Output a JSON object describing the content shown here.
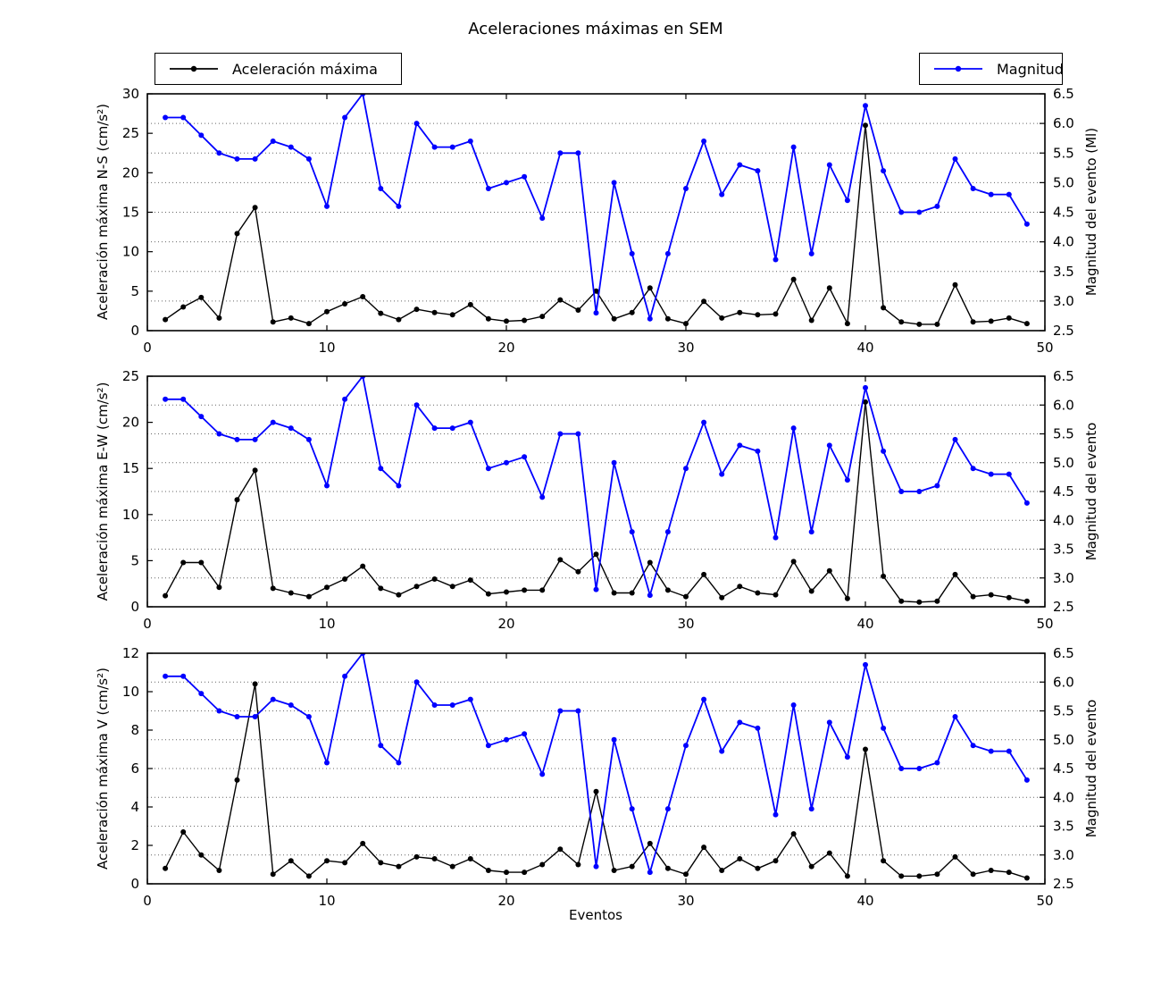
{
  "title": "Aceleraciones máximas en SEM",
  "xlabel": "Eventos",
  "legend": {
    "acceleration_label": "Aceleración máxima",
    "magnitude_label": "Magnitud"
  },
  "colors": {
    "acceleration": "#000000",
    "magnitude": "#0000ff",
    "frame": "#000000",
    "background": "#ffffff"
  },
  "chart_data": {
    "type": "line",
    "title": "Aceleraciones máximas en SEM",
    "xlabel": "Eventos",
    "x_range": [
      0,
      50
    ],
    "x_ticks": [
      0,
      10,
      20,
      30,
      40,
      50
    ],
    "legend": [
      "Aceleración máxima",
      "Magnitud"
    ],
    "legend_position": "top, outside axes (left and right boxes)",
    "grid": "horizontal dotted lines at right-axis ticks 3.0–6.0",
    "x": [
      1,
      2,
      3,
      4,
      5,
      6,
      7,
      8,
      9,
      10,
      11,
      12,
      13,
      14,
      15,
      16,
      17,
      18,
      19,
      20,
      21,
      22,
      23,
      24,
      25,
      26,
      27,
      28,
      29,
      30,
      31,
      32,
      33,
      34,
      35,
      36,
      37,
      38,
      39,
      40,
      41,
      42,
      43,
      44,
      45,
      46,
      47,
      48,
      49
    ],
    "right_axis": {
      "range": [
        2.5,
        6.5
      ],
      "ticks": [
        2.5,
        3.0,
        3.5,
        4.0,
        4.5,
        5.0,
        5.5,
        6.0,
        6.5
      ],
      "gridlines": [
        3.0,
        3.5,
        4.0,
        4.5,
        5.0,
        5.5,
        6.0
      ]
    },
    "series": {
      "acceleration": {
        "name": "Aceleración máxima",
        "color": "#000000"
      },
      "magnitude": {
        "name": "Magnitud",
        "color": "#0000ff",
        "values": [
          6.1,
          6.1,
          5.8,
          5.5,
          5.4,
          5.4,
          5.7,
          5.6,
          5.4,
          4.6,
          6.1,
          6.5,
          4.9,
          4.6,
          6.0,
          5.6,
          5.6,
          5.7,
          4.9,
          5.0,
          5.1,
          4.4,
          5.5,
          5.5,
          2.8,
          5.0,
          3.8,
          2.7,
          3.8,
          4.9,
          5.7,
          4.8,
          5.3,
          5.2,
          3.7,
          5.6,
          3.8,
          5.3,
          4.7,
          6.3,
          5.2,
          4.5,
          4.5,
          4.6,
          5.4,
          4.9,
          4.8,
          4.8,
          4.3
        ]
      }
    },
    "subplots": [
      {
        "id": "ns",
        "ylabel": "Aceleración máxima N-S (cm/s²)",
        "right_ylabel": "Magnitud del evento (Ml)",
        "ylim": [
          0,
          30
        ],
        "yticks": [
          0,
          5,
          10,
          15,
          20,
          25,
          30
        ],
        "acceleration_values": [
          1.4,
          3.0,
          4.2,
          1.6,
          12.3,
          15.6,
          1.1,
          1.6,
          0.9,
          2.4,
          3.4,
          4.3,
          2.2,
          1.4,
          2.7,
          2.3,
          2.0,
          3.3,
          1.5,
          1.2,
          1.3,
          1.8,
          3.9,
          2.6,
          5.0,
          1.5,
          2.3,
          5.4,
          1.5,
          0.9,
          3.7,
          1.6,
          2.3,
          2.0,
          2.1,
          6.5,
          1.3,
          5.4,
          0.9,
          26.0,
          2.9,
          1.1,
          0.8,
          0.8,
          5.8,
          1.1,
          1.2,
          1.6,
          0.9
        ]
      },
      {
        "id": "ew",
        "ylabel": "Aceleración máxima E-W (cm/s²)",
        "right_ylabel": "Magnitud del evento",
        "ylim": [
          0,
          25
        ],
        "yticks": [
          0,
          5,
          10,
          15,
          20,
          25
        ],
        "acceleration_values": [
          1.2,
          4.8,
          4.8,
          2.1,
          11.6,
          14.8,
          2.0,
          1.5,
          1.1,
          2.1,
          3.0,
          4.4,
          2.0,
          1.3,
          2.2,
          3.0,
          2.2,
          2.9,
          1.4,
          1.6,
          1.8,
          1.8,
          5.1,
          3.8,
          5.7,
          1.5,
          1.5,
          4.8,
          1.8,
          1.1,
          3.5,
          1.0,
          2.2,
          1.5,
          1.3,
          4.9,
          1.7,
          3.9,
          0.9,
          22.2,
          3.3,
          0.6,
          0.5,
          0.6,
          3.5,
          1.1,
          1.3,
          1.0,
          0.6
        ]
      },
      {
        "id": "v",
        "ylabel": "Aceleración máxima V (cm/s²)",
        "right_ylabel": "Magnitud del evento",
        "ylim": [
          0,
          12
        ],
        "yticks": [
          0,
          2,
          4,
          6,
          8,
          10,
          12
        ],
        "acceleration_values": [
          0.8,
          2.7,
          1.5,
          0.7,
          5.4,
          10.4,
          0.5,
          1.2,
          0.4,
          1.2,
          1.1,
          2.1,
          1.1,
          0.9,
          1.4,
          1.3,
          0.9,
          1.3,
          0.7,
          0.6,
          0.6,
          1.0,
          1.8,
          1.0,
          4.8,
          0.7,
          0.9,
          2.1,
          0.8,
          0.5,
          1.9,
          0.7,
          1.3,
          0.8,
          1.2,
          2.6,
          0.9,
          1.6,
          0.4,
          7.0,
          1.2,
          0.4,
          0.4,
          0.5,
          1.4,
          0.5,
          0.7,
          0.6,
          0.3
        ]
      }
    ]
  }
}
